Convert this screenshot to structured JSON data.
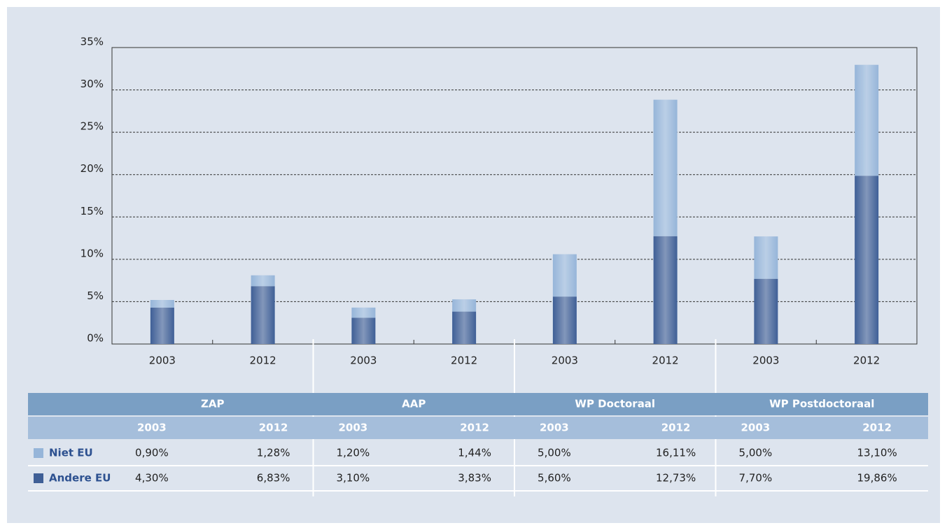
{
  "chart_data": {
    "type": "stacked-bar",
    "categories": [
      "2003",
      "2012",
      "2003",
      "2012",
      "2003",
      "2012",
      "2003",
      "2012"
    ],
    "groups": [
      "ZAP",
      "AAP",
      "WP Doctoraal",
      "WP Postdoctoraal"
    ],
    "series": [
      {
        "name": "Andere EU",
        "color": "#3f5f96",
        "values": [
          4.3,
          6.83,
          3.1,
          3.83,
          5.6,
          12.73,
          7.7,
          19.86
        ],
        "value_labels": [
          "4,30%",
          "6,83%",
          "3,10%",
          "3,83%",
          "5,60%",
          "12,73%",
          "7,70%",
          "19,86%"
        ]
      },
      {
        "name": "Niet EU",
        "color": "#96b5d9",
        "values": [
          0.9,
          1.28,
          1.2,
          1.44,
          5.0,
          16.11,
          5.0,
          13.1
        ],
        "value_labels": [
          "0,90%",
          "1,28%",
          "1,20%",
          "1,44%",
          "5,00%",
          "16,11%",
          "5,00%",
          "13,10%"
        ]
      }
    ],
    "ylim": [
      0,
      35
    ],
    "yticks": [
      {
        "value": 0,
        "label": "0%"
      },
      {
        "value": 5,
        "label": "5%"
      },
      {
        "value": 10,
        "label": "10%"
      },
      {
        "value": 15,
        "label": "15%"
      },
      {
        "value": 20,
        "label": "20%"
      },
      {
        "value": 25,
        "label": "25%"
      },
      {
        "value": 30,
        "label": "30%"
      },
      {
        "value": 35,
        "label": "35%"
      }
    ],
    "grid": true
  }
}
